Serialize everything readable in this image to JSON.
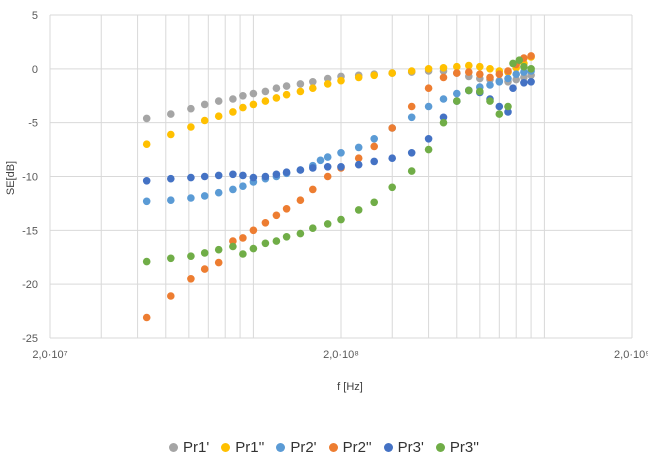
{
  "chart_data": {
    "type": "scatter",
    "title": "",
    "xlabel": "f [Hz]",
    "ylabel": "SE[dB]",
    "x_scale": "log",
    "xlim": [
      20000000,
      2000000000
    ],
    "ylim": [
      -25,
      5
    ],
    "x_ticks": [
      {
        "value": 20000000,
        "label": "2,0·10⁷"
      },
      {
        "value": 200000000,
        "label": "2,0·10⁸"
      },
      {
        "value": 2000000000,
        "label": "2,0·10⁹"
      }
    ],
    "y_ticks": [
      {
        "value": 5,
        "label": "5"
      },
      {
        "value": 0,
        "label": "0"
      },
      {
        "value": -5,
        "label": "-5"
      },
      {
        "value": -10,
        "label": "-10"
      },
      {
        "value": -15,
        "label": "-15"
      },
      {
        "value": -20,
        "label": "-20"
      },
      {
        "value": -25,
        "label": "-25"
      }
    ],
    "grid": true,
    "legend_position": "bottom",
    "series": [
      {
        "name": "Pr1'",
        "color": "#A5A5A5",
        "points": [
          [
            43000000,
            -4.6
          ],
          [
            52000000,
            -4.2
          ],
          [
            61000000,
            -3.7
          ],
          [
            68000000,
            -3.3
          ],
          [
            76000000,
            -3.0
          ],
          [
            85000000,
            -2.8
          ],
          [
            92000000,
            -2.5
          ],
          [
            100000000,
            -2.3
          ],
          [
            110000000,
            -2.1
          ],
          [
            120000000,
            -1.8
          ],
          [
            130000000,
            -1.6
          ],
          [
            145000000,
            -1.4
          ],
          [
            160000000,
            -1.2
          ],
          [
            180000000,
            -0.9
          ],
          [
            200000000,
            -0.7
          ],
          [
            230000000,
            -0.6
          ],
          [
            260000000,
            -0.5
          ],
          [
            300000000,
            -0.4
          ],
          [
            350000000,
            -0.3
          ],
          [
            400000000,
            -0.2
          ],
          [
            450000000,
            -0.2
          ],
          [
            500000000,
            -0.4
          ],
          [
            550000000,
            -0.7
          ],
          [
            600000000,
            -0.9
          ],
          [
            650000000,
            -1.0
          ],
          [
            700000000,
            -1.1
          ],
          [
            750000000,
            -1.2
          ],
          [
            800000000,
            -1.0
          ],
          [
            850000000,
            -0.8
          ],
          [
            900000000,
            -0.6
          ]
        ]
      },
      {
        "name": "Pr1''",
        "color": "#FFC000",
        "points": [
          [
            43000000,
            -7.0
          ],
          [
            52000000,
            -6.1
          ],
          [
            61000000,
            -5.4
          ],
          [
            68000000,
            -4.8
          ],
          [
            76000000,
            -4.4
          ],
          [
            85000000,
            -4.0
          ],
          [
            92000000,
            -3.6
          ],
          [
            100000000,
            -3.3
          ],
          [
            110000000,
            -3.0
          ],
          [
            120000000,
            -2.7
          ],
          [
            130000000,
            -2.4
          ],
          [
            145000000,
            -2.1
          ],
          [
            160000000,
            -1.8
          ],
          [
            180000000,
            -1.4
          ],
          [
            200000000,
            -1.1
          ],
          [
            230000000,
            -0.8
          ],
          [
            260000000,
            -0.6
          ],
          [
            300000000,
            -0.4
          ],
          [
            350000000,
            -0.2
          ],
          [
            400000000,
            0.0
          ],
          [
            450000000,
            0.1
          ],
          [
            500000000,
            0.2
          ],
          [
            550000000,
            0.3
          ],
          [
            600000000,
            0.2
          ],
          [
            650000000,
            0.0
          ],
          [
            700000000,
            -0.2
          ],
          [
            750000000,
            -0.3
          ],
          [
            800000000,
            0.1
          ],
          [
            850000000,
            0.5
          ],
          [
            900000000,
            1.1
          ]
        ]
      },
      {
        "name": "Pr2'",
        "color": "#5B9BD5",
        "points": [
          [
            43000000,
            -12.3
          ],
          [
            52000000,
            -12.2
          ],
          [
            61000000,
            -12.0
          ],
          [
            68000000,
            -11.8
          ],
          [
            76000000,
            -11.5
          ],
          [
            85000000,
            -11.2
          ],
          [
            92000000,
            -10.9
          ],
          [
            100000000,
            -10.5
          ],
          [
            110000000,
            -10.2
          ],
          [
            120000000,
            -10.0
          ],
          [
            130000000,
            -9.7
          ],
          [
            145000000,
            -9.4
          ],
          [
            160000000,
            -9.0
          ],
          [
            170000000,
            -8.5
          ],
          [
            180000000,
            -8.2
          ],
          [
            200000000,
            -7.8
          ],
          [
            230000000,
            -7.3
          ],
          [
            260000000,
            -6.5
          ],
          [
            300000000,
            -5.5
          ],
          [
            350000000,
            -4.5
          ],
          [
            400000000,
            -3.5
          ],
          [
            450000000,
            -2.8
          ],
          [
            500000000,
            -2.3
          ],
          [
            550000000,
            -2.0
          ],
          [
            600000000,
            -1.7
          ],
          [
            650000000,
            -1.5
          ],
          [
            700000000,
            -1.2
          ],
          [
            750000000,
            -0.9
          ],
          [
            800000000,
            -0.5
          ],
          [
            850000000,
            -0.3
          ],
          [
            900000000,
            -0.2
          ]
        ]
      },
      {
        "name": "Pr2''",
        "color": "#ED7D31",
        "points": [
          [
            43000000,
            -23.1
          ],
          [
            52000000,
            -21.1
          ],
          [
            61000000,
            -19.5
          ],
          [
            68000000,
            -18.6
          ],
          [
            76000000,
            -18.0
          ],
          [
            85000000,
            -16.0
          ],
          [
            92000000,
            -15.7
          ],
          [
            100000000,
            -15.0
          ],
          [
            110000000,
            -14.3
          ],
          [
            120000000,
            -13.6
          ],
          [
            130000000,
            -13.0
          ],
          [
            145000000,
            -12.2
          ],
          [
            160000000,
            -11.2
          ],
          [
            180000000,
            -10.0
          ],
          [
            200000000,
            -9.2
          ],
          [
            230000000,
            -8.3
          ],
          [
            260000000,
            -7.2
          ],
          [
            300000000,
            -5.5
          ],
          [
            350000000,
            -3.5
          ],
          [
            400000000,
            -1.8
          ],
          [
            450000000,
            -0.8
          ],
          [
            500000000,
            -0.4
          ],
          [
            550000000,
            -0.3
          ],
          [
            600000000,
            -0.5
          ],
          [
            650000000,
            -0.8
          ],
          [
            700000000,
            -0.5
          ],
          [
            750000000,
            -0.2
          ],
          [
            800000000,
            0.4
          ],
          [
            850000000,
            1.0
          ],
          [
            900000000,
            1.2
          ]
        ]
      },
      {
        "name": "Pr3'",
        "color": "#4472C4",
        "points": [
          [
            43000000,
            -10.4
          ],
          [
            52000000,
            -10.2
          ],
          [
            61000000,
            -10.1
          ],
          [
            68000000,
            -10.0
          ],
          [
            76000000,
            -9.9
          ],
          [
            85000000,
            -9.8
          ],
          [
            92000000,
            -9.9
          ],
          [
            100000000,
            -10.1
          ],
          [
            110000000,
            -10.0
          ],
          [
            120000000,
            -9.8
          ],
          [
            130000000,
            -9.6
          ],
          [
            145000000,
            -9.4
          ],
          [
            160000000,
            -9.2
          ],
          [
            180000000,
            -9.1
          ],
          [
            200000000,
            -9.1
          ],
          [
            230000000,
            -8.9
          ],
          [
            260000000,
            -8.6
          ],
          [
            300000000,
            -8.3
          ],
          [
            350000000,
            -7.8
          ],
          [
            400000000,
            -6.5
          ],
          [
            450000000,
            -4.5
          ],
          [
            500000000,
            -3.0
          ],
          [
            550000000,
            -2.0
          ],
          [
            600000000,
            -2.2
          ],
          [
            650000000,
            -2.8
          ],
          [
            700000000,
            -3.5
          ],
          [
            750000000,
            -4.0
          ],
          [
            780000000,
            -1.8
          ],
          [
            850000000,
            -1.3
          ],
          [
            900000000,
            -1.2
          ]
        ]
      },
      {
        "name": "Pr3''",
        "color": "#70AD47",
        "points": [
          [
            43000000,
            -17.9
          ],
          [
            52000000,
            -17.6
          ],
          [
            61000000,
            -17.4
          ],
          [
            68000000,
            -17.1
          ],
          [
            76000000,
            -16.8
          ],
          [
            85000000,
            -16.5
          ],
          [
            92000000,
            -17.2
          ],
          [
            100000000,
            -16.7
          ],
          [
            110000000,
            -16.2
          ],
          [
            120000000,
            -16.0
          ],
          [
            130000000,
            -15.6
          ],
          [
            145000000,
            -15.3
          ],
          [
            160000000,
            -14.8
          ],
          [
            180000000,
            -14.4
          ],
          [
            200000000,
            -14.0
          ],
          [
            230000000,
            -13.1
          ],
          [
            260000000,
            -12.4
          ],
          [
            300000000,
            -11.0
          ],
          [
            350000000,
            -9.5
          ],
          [
            400000000,
            -7.5
          ],
          [
            450000000,
            -5.0
          ],
          [
            500000000,
            -3.0
          ],
          [
            550000000,
            -2.0
          ],
          [
            600000000,
            -2.1
          ],
          [
            650000000,
            -3.0
          ],
          [
            700000000,
            -4.2
          ],
          [
            750000000,
            -3.5
          ],
          [
            780000000,
            0.5
          ],
          [
            820000000,
            0.8
          ],
          [
            850000000,
            0.2
          ],
          [
            900000000,
            0.0
          ]
        ]
      }
    ]
  }
}
